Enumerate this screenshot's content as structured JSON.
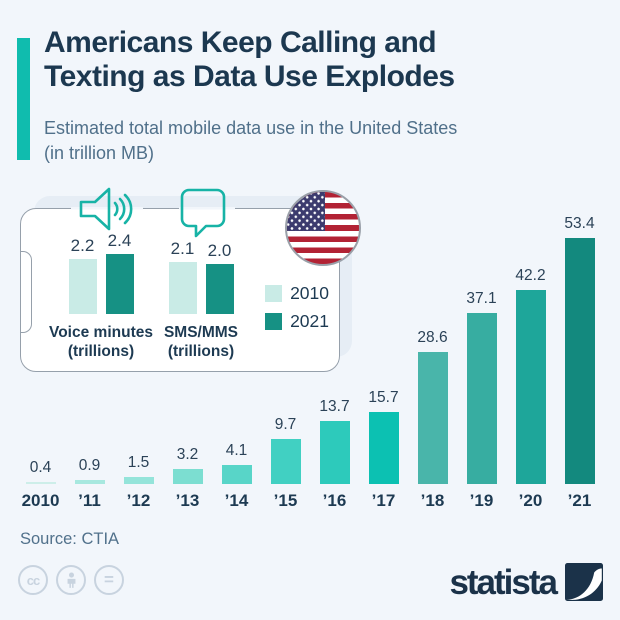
{
  "page": {
    "background": "#f2f6fb"
  },
  "header": {
    "accent_color": "#10bcae",
    "title_lines": [
      "Americans Keep Calling and",
      "Texting as Data Use Explodes"
    ],
    "subtitle_lines": [
      "Estimated total mobile data use in the United States",
      "(in trillion MB)"
    ]
  },
  "chart_data": [
    {
      "id": "mobile-data-use",
      "type": "bar",
      "title": "Estimated total mobile data use in the United States (in trillion MB)",
      "unit": "trillion MB",
      "categories": [
        "2010",
        "’11",
        "’12",
        "’13",
        "’14",
        "’15",
        "’16",
        "’17",
        "’18",
        "’19",
        "’20",
        "’21"
      ],
      "values": [
        0.4,
        0.9,
        1.5,
        3.2,
        4.1,
        9.7,
        13.7,
        15.7,
        28.6,
        37.1,
        42.2,
        53.4
      ],
      "bar_colors": [
        "#cdeee9",
        "#a7e8df",
        "#94e4da",
        "#7cded1",
        "#58d5c8",
        "#41d0c2",
        "#2dcabb",
        "#0cc1b2",
        "#49b5aa",
        "#37ada1",
        "#1ea69a",
        "#13897e"
      ],
      "data_labels": true,
      "axis_lines": false,
      "grid": false,
      "ylim": [
        0,
        55
      ]
    },
    {
      "id": "voice-sms-comparison",
      "type": "bar",
      "categories": [
        "Voice minutes\n(trillions)",
        "SMS/MMS\n(trillions)"
      ],
      "series": [
        {
          "name": "2010",
          "color": "#c9ebe6",
          "values": [
            2.2,
            2.1
          ]
        },
        {
          "name": "2021",
          "color": "#169184",
          "values": [
            2.4,
            2.0
          ]
        }
      ],
      "data_labels": true,
      "legend_position": "right",
      "grid": false
    }
  ],
  "inset": {
    "icons": [
      "speaker-icon",
      "speech-bubble-icon",
      "us-flag-icon"
    ],
    "flag_colors": {
      "red": "#b22234",
      "blue": "#3c3b6e",
      "white": "#ffffff"
    }
  },
  "footer": {
    "source": "Source: CTIA",
    "brand": "statista",
    "brand_color": "#1b3249",
    "license_icons": [
      "cc-icon",
      "attribution-icon",
      "equals-icon"
    ]
  }
}
